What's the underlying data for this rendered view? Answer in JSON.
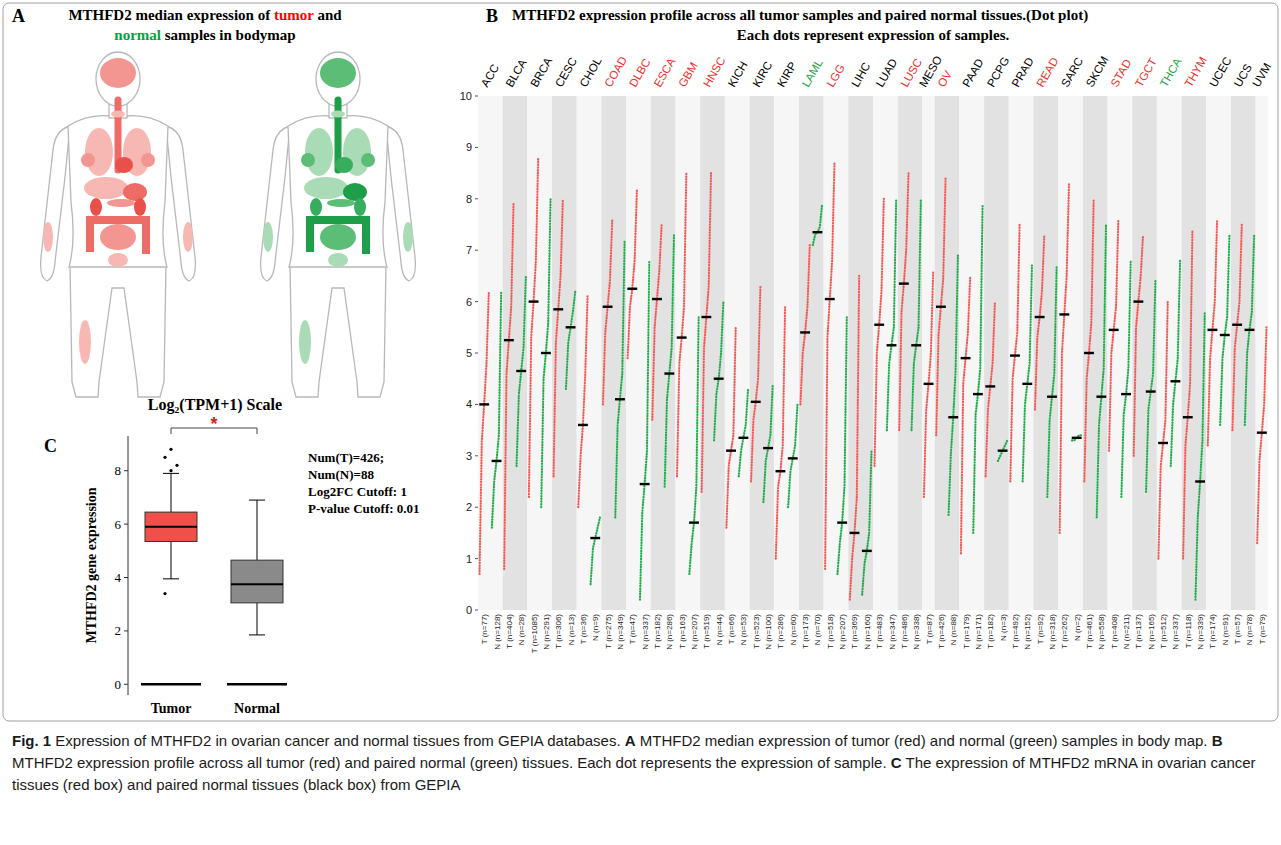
{
  "panel_a": {
    "letter": "A",
    "title": [
      [
        {
          "text": "MTHFD2 median expression of "
        },
        {
          "text": "tumor",
          "color": "#ff0000"
        },
        {
          "text": " and"
        }
      ],
      [
        {
          "text": "normal",
          "color": "#00a33a"
        },
        {
          "text": " samples in bodymap"
        }
      ]
    ]
  },
  "chart_data": [
    {
      "type": "dot",
      "letter": "B",
      "title": "MTHFD2 expression profile across all tumor samples and paired normal tissues.(Dot plot)",
      "subtitle": "Each dots represent expression of samples.",
      "categories": [
        "ACC",
        "BLCA",
        "BRCA",
        "CESC",
        "CHOL",
        "COAD",
        "DLBC",
        "ESCA",
        "GBM",
        "HNSC",
        "KICH",
        "KIRC",
        "KIRP",
        "LAML",
        "LGG",
        "LIHC",
        "LUAD",
        "LUSC",
        "MESO",
        "OV",
        "PAAD",
        "PCPG",
        "PRAD",
        "READ",
        "SARC",
        "SKCM",
        "STAD",
        "TGCT",
        "THCA",
        "THYM",
        "UCEC",
        "UCS",
        "UVM"
      ],
      "colors": [
        "#000000",
        "#000000",
        "#000000",
        "#000000",
        "#000000",
        "#e8312b",
        "#e8312b",
        "#e8312b",
        "#e8312b",
        "#e8312b",
        "#000000",
        "#000000",
        "#000000",
        "#1fa643",
        "#e8312b",
        "#000000",
        "#000000",
        "#e8312b",
        "#000000",
        "#e8312b",
        "#000000",
        "#000000",
        "#000000",
        "#e8312b",
        "#000000",
        "#000000",
        "#e8312b",
        "#e8312b",
        "#1fa643",
        "#e8312b",
        "#000000",
        "#000000",
        "#000000"
      ],
      "ylim": [
        0,
        10
      ],
      "yticks": [
        0,
        1,
        2,
        3,
        4,
        5,
        6,
        7,
        8,
        9,
        10
      ],
      "series": [
        {
          "color": "#f25a55",
          "values": [
            4.0,
            5.25,
            6.0,
            5.85,
            3.6,
            5.9,
            6.25,
            6.05,
            5.3,
            5.7,
            3.1,
            4.05,
            2.7,
            5.4,
            6.05,
            1.5,
            5.55,
            6.35,
            4.4,
            5.9,
            4.9,
            4.35,
            4.95,
            5.7,
            5.75,
            5.0,
            5.45,
            6.0,
            3.25,
            3.75,
            5.45,
            5.55,
            3.45
          ],
          "spread": [
            [
              0.7,
              3.3,
              4.8,
              6.2
            ],
            [
              0.8,
              4.6,
              5.9,
              7.9
            ],
            [
              2.2,
              5.3,
              6.8,
              8.8
            ],
            [
              2.6,
              5.2,
              6.5,
              8.0
            ],
            [
              2.0,
              3.0,
              4.6,
              6.1
            ],
            [
              4.0,
              5.4,
              6.4,
              7.6
            ],
            [
              4.9,
              5.9,
              6.8,
              8.2
            ],
            [
              3.7,
              5.5,
              6.6,
              7.5
            ],
            [
              2.6,
              4.8,
              5.9,
              8.5
            ],
            [
              2.3,
              5.1,
              6.3,
              8.5
            ],
            [
              1.6,
              2.8,
              3.4,
              5.5
            ],
            [
              2.5,
              3.7,
              4.5,
              6.3
            ],
            [
              1.0,
              2.4,
              3.2,
              5.9
            ],
            [
              4.0,
              5.0,
              5.9,
              7.1
            ],
            [
              0.8,
              5.3,
              6.8,
              8.7
            ],
            [
              0.2,
              1.0,
              2.2,
              6.5
            ],
            [
              2.8,
              5.0,
              6.2,
              8.0
            ],
            [
              3.5,
              5.8,
              7.0,
              8.5
            ],
            [
              2.2,
              3.9,
              5.0,
              6.6
            ],
            [
              3.4,
              5.35,
              6.45,
              8.4
            ],
            [
              1.1,
              4.4,
              5.4,
              6.5
            ],
            [
              2.6,
              3.9,
              4.8,
              6.0
            ],
            [
              2.5,
              4.5,
              5.4,
              7.5
            ],
            [
              3.9,
              5.3,
              6.2,
              7.3
            ],
            [
              1.5,
              5.0,
              6.5,
              8.3
            ],
            [
              2.5,
              4.5,
              5.6,
              8.0
            ],
            [
              3.1,
              5.0,
              5.9,
              7.6
            ],
            [
              3.0,
              5.5,
              6.5,
              7.3
            ],
            [
              1.0,
              2.8,
              3.7,
              6.0
            ],
            [
              1.0,
              3.2,
              4.4,
              7.4
            ],
            [
              3.2,
              4.9,
              6.0,
              7.6
            ],
            [
              3.5,
              5.1,
              6.0,
              7.5
            ],
            [
              1.3,
              2.9,
              4.0,
              5.5
            ]
          ],
          "sample_labels": [
            "T (n=77)",
            "T (n=404)",
            "T (n=1085)",
            "T (n=306)",
            "T (n=36)",
            "T (n=275)",
            "T (n=47)",
            "T (n=182)",
            "T (n=163)",
            "T (n=519)",
            "T (n=66)",
            "T (n=523)",
            "T (n=286)",
            "T (n=173)",
            "T (n=518)",
            "T (n=369)",
            "T (n=483)",
            "T (n=486)",
            "T (n=87)",
            "T (n=426)",
            "T (n=179)",
            "T (n=182)",
            "T (n=492)",
            "T (n=92)",
            "T (n=262)",
            "T (n=461)",
            "T (n=408)",
            "T (n=137)",
            "T (n=512)",
            "T (n=118)",
            "T (n=174)",
            "T (n=57)",
            "T (n=79)"
          ]
        },
        {
          "color": "#1fae4b",
          "values": [
            2.9,
            4.65,
            5.0,
            5.5,
            1.4,
            4.1,
            2.45,
            4.6,
            1.7,
            4.5,
            3.35,
            3.15,
            2.95,
            7.35,
            1.7,
            1.15,
            5.15,
            5.15,
            null,
            3.75,
            4.2,
            3.1,
            4.4,
            4.15,
            3.35,
            4.15,
            4.2,
            4.25,
            4.45,
            2.5,
            5.35,
            5.45,
            null
          ],
          "spread": [
            [
              1.6,
              2.5,
              3.4,
              6.2
            ],
            [
              2.8,
              4.2,
              5.1,
              6.5
            ],
            [
              2.0,
              4.5,
              5.6,
              8.0
            ],
            [
              4.3,
              5.2,
              5.8,
              6.2
            ],
            [
              0.5,
              1.2,
              1.6,
              1.8
            ],
            [
              1.8,
              3.6,
              4.6,
              7.2
            ],
            [
              0.2,
              1.9,
              3.1,
              6.8
            ],
            [
              2.4,
              4.1,
              5.1,
              7.3
            ],
            [
              0.7,
              1.3,
              2.4,
              5.7
            ],
            [
              3.3,
              4.2,
              5.0,
              6.0
            ],
            [
              2.6,
              3.1,
              3.6,
              4.3
            ],
            [
              2.1,
              2.9,
              3.4,
              4.4
            ],
            [
              2.0,
              2.7,
              3.2,
              4.0
            ],
            [
              7.1,
              7.3,
              7.45,
              7.9
            ],
            [
              0.7,
              1.3,
              2.4,
              5.7
            ],
            [
              0.3,
              0.9,
              1.5,
              3.1
            ],
            [
              3.5,
              4.8,
              5.5,
              8.0
            ],
            [
              3.5,
              4.8,
              5.5,
              8.0
            ],
            null,
            [
              1.85,
              3.05,
              4.65,
              6.9
            ],
            [
              1.5,
              3.8,
              4.7,
              7.9
            ],
            [
              2.9,
              3.0,
              3.2,
              3.3
            ],
            [
              2.5,
              4.0,
              4.8,
              6.7
            ],
            [
              2.2,
              3.7,
              4.6,
              6.7
            ],
            [
              3.3,
              3.3,
              3.4,
              3.4
            ],
            [
              1.8,
              3.6,
              4.7,
              7.5
            ],
            [
              2.2,
              3.8,
              4.7,
              6.8
            ],
            [
              2.3,
              3.9,
              4.6,
              6.4
            ],
            [
              2.8,
              4.0,
              4.9,
              6.8
            ],
            [
              0.2,
              1.8,
              3.3,
              5.8
            ],
            [
              3.6,
              4.9,
              5.7,
              7.3
            ],
            [
              3.6,
              5.0,
              5.8,
              7.3
            ],
            null
          ],
          "sample_labels": [
            "N (n=128)",
            "N (n=28)",
            "N (n=291)",
            "N (n=13)",
            "N (n=9)",
            "N (n=349)",
            "N (n=337)",
            "N (n=286)",
            "N (n=207)",
            "N (n=44)",
            "N (n=53)",
            "N (n=100)",
            "N (n=60)",
            "N (n=70)",
            "N (n=207)",
            "N (n=160)",
            "N (n=347)",
            "N (n=338)",
            null,
            "N (n=88)",
            "N (n=171)",
            "N (n=3)",
            "N (n=152)",
            "N (n=318)",
            "N (n=2)",
            "N (n=558)",
            "N (n=211)",
            "N (n=165)",
            "N (n=337)",
            "N (n=339)",
            "N (n=91)",
            "N (n=78)",
            null
          ]
        }
      ]
    },
    {
      "type": "box",
      "letter": "C",
      "title": "Log₂(TPM+1) Scale",
      "y_label": "MTHFD2 gene expression",
      "categories": [
        "Tumor",
        "Normal"
      ],
      "colors": [
        "#f0504a",
        "#8a8a8a"
      ],
      "ylim": [
        -0.4,
        9.3
      ],
      "yticks": [
        0,
        2,
        4,
        6,
        8
      ],
      "boxes": [
        {
          "min": 3.95,
          "q1": 5.35,
          "median": 5.9,
          "q3": 6.45,
          "max": 7.9,
          "outliers": [
            3.4,
            8.0,
            8.2,
            8.5,
            8.8
          ]
        },
        {
          "min": 1.85,
          "q1": 3.05,
          "median": 3.75,
          "q3": 4.65,
          "max": 6.9,
          "outliers": []
        }
      ],
      "zero_lines": [
        0,
        0
      ],
      "significance": "*",
      "notes": [
        "Num(T)=426;",
        "Num(N)=88",
        "Log2FC Cutoff: 1",
        "P-value Cutoff: 0.01"
      ]
    }
  ],
  "caption": {
    "label": "Fig. 1",
    "text": "Expression of MTHFD2 in ovarian cancer and normal tissues from GEPIA databases.",
    "parts": [
      {
        "letter": "A",
        "text": "MTHFD2 median expression of tumor (red) and normal (green) samples in body map."
      },
      {
        "letter": "B",
        "text": "MTHFD2 expression profile across all tumor (red) and paired normal (green) tissues. Each dot represents the expression of sample."
      },
      {
        "letter": "C",
        "text": "The expression of MTHFD2 mRNA in ovarian cancer tissues (red box) and paired normal tissues (black box) from GEPIA"
      }
    ]
  }
}
